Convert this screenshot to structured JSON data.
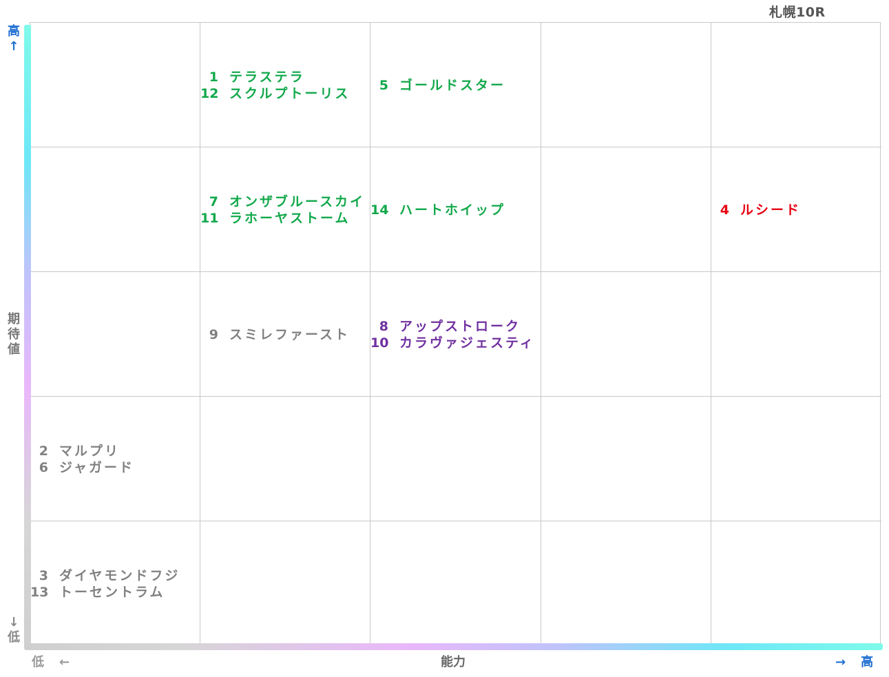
{
  "race_title": "札幌10R",
  "axes": {
    "y_label": "期待値",
    "y_high": "高",
    "y_low": "低",
    "y_up_arrow": "↑",
    "y_down_arrow": "↓",
    "x_label": "能力",
    "x_low": "低",
    "x_high": "高",
    "x_left_arrow": "←",
    "x_right_arrow": "→"
  },
  "colors": {
    "green": "#11a84a",
    "gray": "#808080",
    "purple": "#7030a0",
    "red": "#e60012"
  },
  "chart_data": {
    "type": "table",
    "title": "札幌10R",
    "xlabel": "能力",
    "ylabel": "期待値",
    "columns": 5,
    "rows": 5,
    "x_direction": "低 → 高 (left to right)",
    "y_direction": "低 → 高 (bottom to top)",
    "cells": [
      {
        "row": 0,
        "col": 1,
        "color": "green",
        "entries": [
          {
            "num": "1",
            "name": "テラステラ"
          },
          {
            "num": "12",
            "name": "スクルプトーリス"
          }
        ]
      },
      {
        "row": 0,
        "col": 2,
        "color": "green",
        "entries": [
          {
            "num": "5",
            "name": "ゴールドスター"
          }
        ]
      },
      {
        "row": 1,
        "col": 1,
        "color": "green",
        "entries": [
          {
            "num": "7",
            "name": "オンザブルースカイ"
          },
          {
            "num": "11",
            "name": "ラホーヤストーム"
          }
        ]
      },
      {
        "row": 1,
        "col": 2,
        "color": "green",
        "entries": [
          {
            "num": "14",
            "name": "ハートホイップ"
          }
        ]
      },
      {
        "row": 1,
        "col": 4,
        "color": "red",
        "entries": [
          {
            "num": "4",
            "name": "ルシード"
          }
        ]
      },
      {
        "row": 2,
        "col": 1,
        "color": "gray",
        "entries": [
          {
            "num": "9",
            "name": "スミレファースト"
          }
        ]
      },
      {
        "row": 2,
        "col": 2,
        "color": "purple",
        "entries": [
          {
            "num": "8",
            "name": "アップストローク"
          },
          {
            "num": "10",
            "name": "カラヴァジェスティ"
          }
        ]
      },
      {
        "row": 3,
        "col": 0,
        "color": "gray",
        "entries": [
          {
            "num": "2",
            "name": "マルプリ"
          },
          {
            "num": "6",
            "name": "ジャガード"
          }
        ]
      },
      {
        "row": 4,
        "col": 0,
        "color": "gray",
        "entries": [
          {
            "num": "3",
            "name": "ダイヤモンドフジ"
          },
          {
            "num": "13",
            "name": "トーセントラム"
          }
        ]
      }
    ]
  }
}
